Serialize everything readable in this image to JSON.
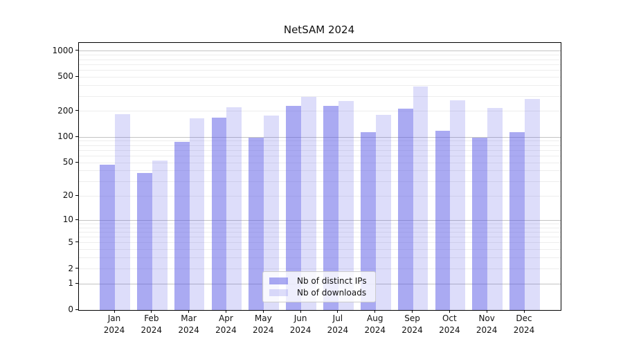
{
  "title": "NetSAM 2024",
  "colors": {
    "bar_base": "#5555e6",
    "bar_distinct_ips": "rgba(85,85,230,0.5)",
    "bar_downloads": "rgba(85,85,230,0.2)",
    "grid_major": "#c3c3c3",
    "grid_minor": "#ededed",
    "axis": "#000000",
    "text": "#111111",
    "legend_border": "#cccccc"
  },
  "legend": {
    "items": [
      {
        "label": "Nb of distinct IPs",
        "series": "distinct_ips"
      },
      {
        "label": "Nb of downloads",
        "series": "downloads"
      }
    ],
    "position": "lower center"
  },
  "chart_data": {
    "type": "bar",
    "title": "NetSAM 2024",
    "categories": [
      "Jan 2024",
      "Feb 2024",
      "Mar 2024",
      "Apr 2024",
      "May 2024",
      "Jun 2024",
      "Jul 2024",
      "Aug 2024",
      "Sep 2024",
      "Oct 2024",
      "Nov 2024",
      "Dec 2024"
    ],
    "series": [
      {
        "name": "Nb of distinct IPs",
        "key": "distinct_ips",
        "color": "rgba(85,85,230,0.5)",
        "values": [
          47,
          38,
          88,
          169,
          98,
          230,
          232,
          115,
          214,
          118,
          98,
          115
        ]
      },
      {
        "name": "Nb of downloads",
        "key": "downloads",
        "color": "rgba(85,85,230,0.2)",
        "values": [
          184,
          53,
          167,
          222,
          178,
          293,
          262,
          181,
          388,
          268,
          218,
          277
        ]
      }
    ],
    "xlabel": "",
    "ylabel": "",
    "yscale": "symlog",
    "yticks_labeled": [
      0,
      1,
      2,
      5,
      10,
      20,
      50,
      100,
      200,
      500,
      1000
    ],
    "ygrid_major": [
      1,
      10,
      100,
      1000
    ],
    "ygrid_minor": [
      2,
      3,
      4,
      5,
      6,
      7,
      8,
      9,
      20,
      30,
      40,
      50,
      60,
      70,
      80,
      90,
      200,
      300,
      400,
      500,
      600,
      700,
      800,
      900
    ],
    "ylim": [
      0,
      1240
    ],
    "grid": "horizontal, major and minor",
    "legend_position": "lower center"
  }
}
